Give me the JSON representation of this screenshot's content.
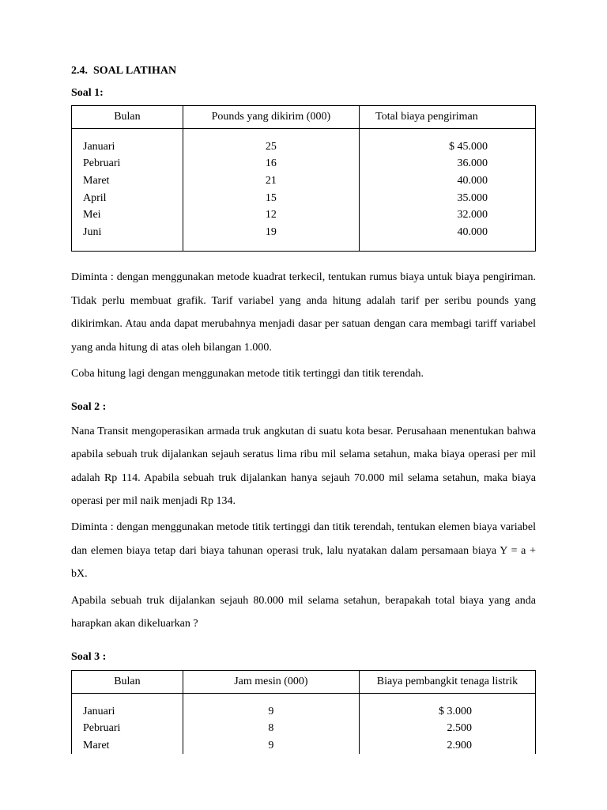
{
  "section": {
    "number": "2.4.",
    "title": "SOAL LATIHAN"
  },
  "soal1": {
    "label": "Soal 1:",
    "headers": [
      "Bulan",
      "Pounds yang dikirim (000)",
      "Total biaya pengiriman"
    ],
    "rows": [
      {
        "bulan": "Januari",
        "pounds": "25",
        "biaya": "$ 45.000"
      },
      {
        "bulan": "Pebruari",
        "pounds": "16",
        "biaya": "36.000"
      },
      {
        "bulan": "Maret",
        "pounds": "21",
        "biaya": "40.000"
      },
      {
        "bulan": "April",
        "pounds": "15",
        "biaya": "35.000"
      },
      {
        "bulan": "Mei",
        "pounds": "12",
        "biaya": "32.000"
      },
      {
        "bulan": "Juni",
        "pounds": "19",
        "biaya": "40.000"
      }
    ],
    "para1": "Diminta : dengan menggunakan metode kuadrat terkecil, tentukan rumus biaya untuk biaya pengiriman. Tidak perlu membuat grafik. Tarif variabel yang anda hitung adalah tarif per seribu pounds yang dikirimkan. Atau anda dapat merubahnya menjadi dasar per satuan dengan cara membagi tariff variabel yang anda hitung di atas oleh bilangan 1.000.",
    "para2": "Coba hitung lagi dengan menggunakan metode titik tertinggi dan titik terendah."
  },
  "soal2": {
    "label": "Soal 2 :",
    "para1": "Nana Transit mengoperasikan armada truk angkutan di suatu kota besar. Perusahaan menentukan bahwa apabila sebuah truk dijalankan sejauh seratus lima ribu mil selama setahun, maka biaya operasi per mil adalah Rp 114. Apabila sebuah truk dijalankan hanya sejauh 70.000 mil selama setahun, maka biaya operasi per mil naik menjadi Rp 134.",
    "para2": "Diminta : dengan menggunakan metode titik tertinggi dan titik terendah, tentukan elemen biaya variabel dan elemen biaya tetap dari biaya tahunan operasi truk, lalu nyatakan dalam persamaan biaya Y = a + bX.",
    "para3": "Apabila sebuah truk dijalankan sejauh 80.000 mil selama setahun, berapakah total biaya yang anda harapkan akan dikeluarkan ?"
  },
  "soal3": {
    "label": "Soal 3 :",
    "headers": [
      "Bulan",
      "Jam mesin (000)",
      "Biaya pembangkit tenaga listrik"
    ],
    "rows": [
      {
        "bulan": "Januari",
        "jam": "9",
        "biaya": "$ 3.000"
      },
      {
        "bulan": "Pebruari",
        "jam": "8",
        "biaya": "2.500"
      },
      {
        "bulan": "Maret",
        "jam": "9",
        "biaya": "2.900"
      }
    ]
  }
}
